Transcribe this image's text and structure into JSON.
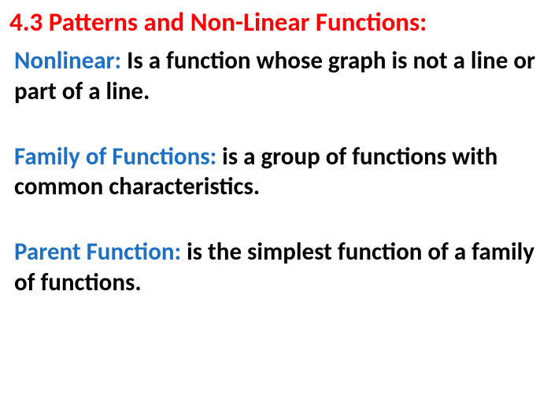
{
  "slide": {
    "title": "4.3 Patterns and Non-Linear Functions:",
    "definitions": [
      {
        "term": "Nonlinear:",
        "text": "  Is a function whose graph is not  a line or part of a line."
      },
      {
        "term": "Family of Functions:",
        "text": " is a group of functions with common characteristics."
      },
      {
        "term": "Parent Function:",
        "text": " is the simplest function of a family of functions."
      }
    ]
  },
  "colors": {
    "title_color": "#ff0000",
    "term_color": "#1f6fc2",
    "text_color": "#000000",
    "background": "#ffffff"
  },
  "typography": {
    "title_fontsize": 33,
    "body_fontsize": 31,
    "font_weight": "bold",
    "font_family": "Calibri, Arial, sans-serif"
  }
}
